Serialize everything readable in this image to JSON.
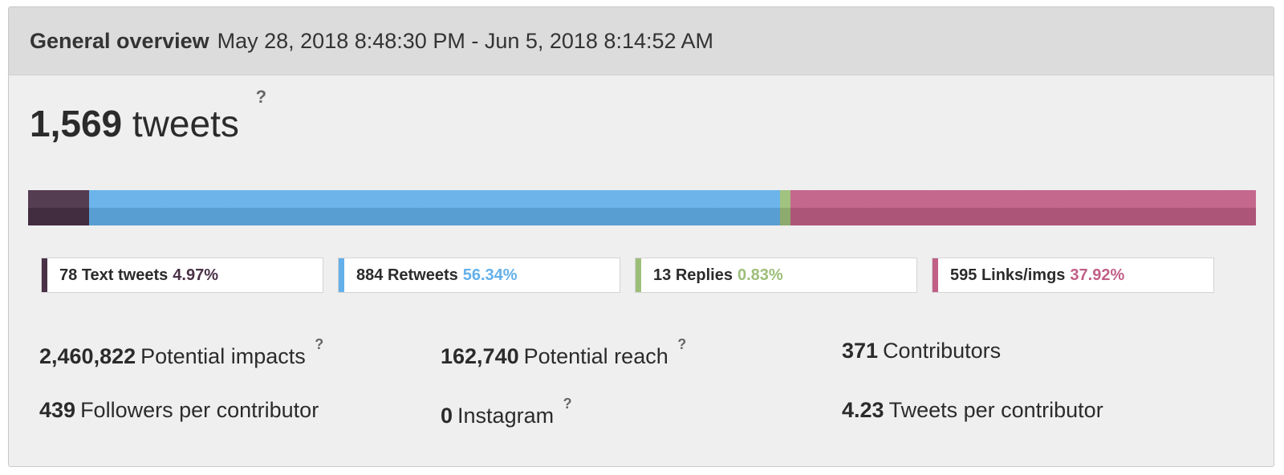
{
  "header": {
    "title": "General overview",
    "date_range": "May 28, 2018 8:48:30 PM - Jun 5, 2018 8:14:52 AM"
  },
  "total": {
    "count": "1,569",
    "label": "tweets",
    "help": "?"
  },
  "breakdown": [
    {
      "count": "78",
      "label": "Text tweets",
      "percent": "4.97%",
      "fraction": 0.0497,
      "color": "#4a3147",
      "pct_color": "#4a3147"
    },
    {
      "count": "884",
      "label": "Retweets",
      "percent": "56.34%",
      "fraction": 0.5634,
      "color": "#63b0ea",
      "pct_color": "#63b0ea"
    },
    {
      "count": "13",
      "label": "Replies",
      "percent": "0.83%",
      "fraction": 0.0083,
      "color": "#9cbe78",
      "pct_color": "#9cbe78"
    },
    {
      "count": "595",
      "label": "Links/imgs",
      "percent": "37.92%",
      "fraction": 0.3792,
      "color": "#c15f86",
      "pct_color": "#c15f86"
    }
  ],
  "stats": [
    {
      "value": "2,460,822",
      "label": "Potential impacts",
      "help": "?"
    },
    {
      "value": "162,740",
      "label": "Potential reach",
      "help": "?"
    },
    {
      "value": "371",
      "label": "Contributors",
      "help": ""
    },
    {
      "value": "439",
      "label": "Followers per contributor",
      "help": ""
    },
    {
      "value": "0",
      "label": "Instagram",
      "help": "?"
    },
    {
      "value": "4.23",
      "label": "Tweets per contributor",
      "help": ""
    }
  ]
}
